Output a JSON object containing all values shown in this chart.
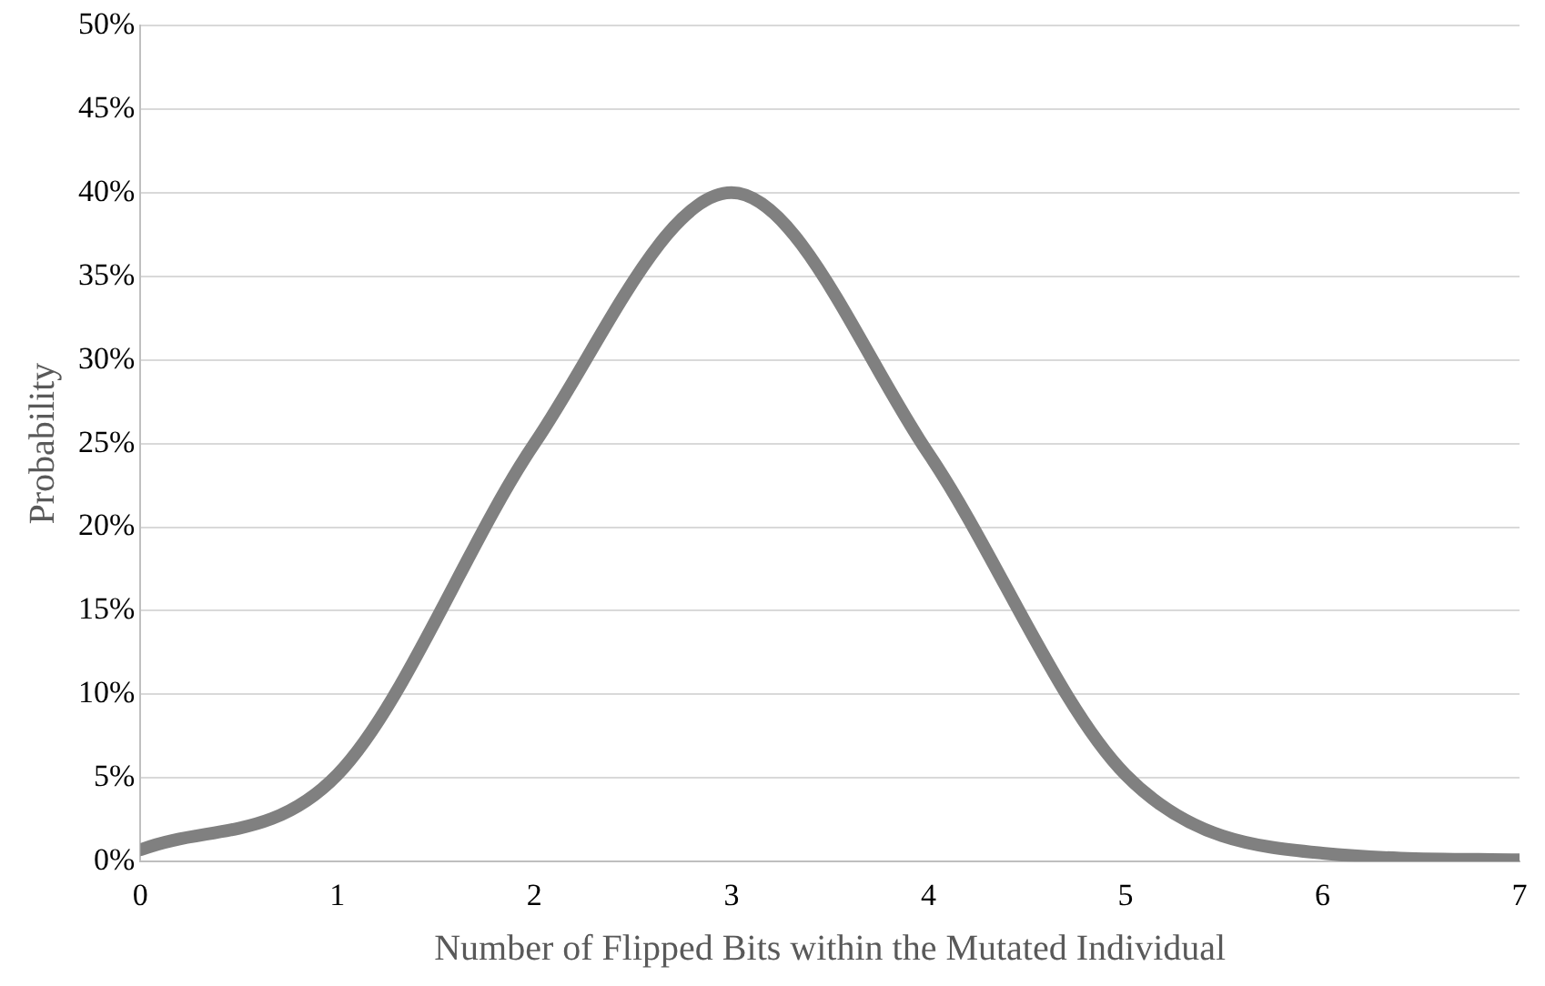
{
  "chart_data": {
    "type": "line",
    "xlabel": "Number of Flipped Bits within the Mutated Individual",
    "ylabel": "Probability",
    "x": [
      0,
      1,
      2,
      3,
      4,
      5,
      6,
      7
    ],
    "series": [
      {
        "color": "#808080",
        "values": [
          0.7,
          5.2,
          25,
          40,
          24.4,
          5.2,
          0.5,
          0.1
        ]
      }
    ],
    "xlim": [
      0,
      7
    ],
    "xticks": [
      0,
      1,
      2,
      3,
      4,
      5,
      6,
      7
    ],
    "ylim": [
      0,
      50
    ],
    "yticks": [
      {
        "value": 0,
        "label": "0%"
      },
      {
        "value": 5,
        "label": "5%"
      },
      {
        "value": 10,
        "label": "10%"
      },
      {
        "value": 15,
        "label": "15%"
      },
      {
        "value": 20,
        "label": "20%"
      },
      {
        "value": 25,
        "label": "25%"
      },
      {
        "value": 30,
        "label": "30%"
      },
      {
        "value": 35,
        "label": "35%"
      },
      {
        "value": 40,
        "label": "40%"
      },
      {
        "value": 45,
        "label": "45%"
      },
      {
        "value": 50,
        "label": "50%"
      }
    ],
    "grid": "y",
    "legend": false,
    "marker": "none",
    "line_style": "solid"
  }
}
